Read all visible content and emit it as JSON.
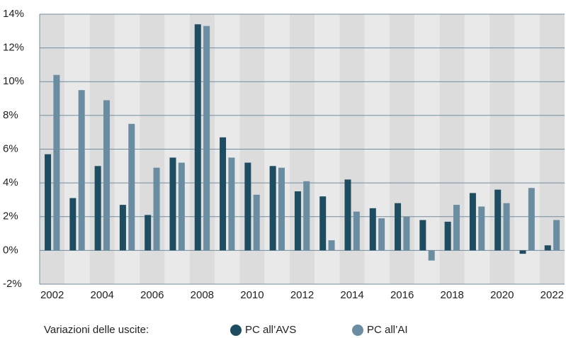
{
  "chart_data": {
    "type": "bar",
    "categories": [
      "2002",
      null,
      "2004",
      null,
      "2006",
      null,
      "2008",
      null,
      "2010",
      null,
      "2012",
      null,
      "2014",
      null,
      "2016",
      null,
      "2018",
      null,
      "2020",
      null,
      "2022"
    ],
    "series": [
      {
        "name": "PC all’AVS",
        "color": "#1e4d61",
        "values": [
          5.7,
          3.1,
          5.0,
          2.7,
          2.1,
          5.5,
          13.4,
          6.7,
          5.2,
          5.0,
          3.5,
          3.2,
          4.2,
          2.5,
          2.8,
          1.8,
          1.7,
          3.4,
          3.6,
          -0.2,
          0.3
        ]
      },
      {
        "name": "PC all’AI",
        "color": "#6a8da2",
        "values": [
          10.4,
          9.5,
          8.9,
          7.5,
          4.9,
          5.2,
          13.3,
          5.5,
          3.3,
          4.9,
          4.1,
          0.6,
          2.3,
          1.9,
          2.0,
          -0.6,
          2.7,
          2.6,
          2.8,
          3.7,
          1.8
        ]
      }
    ],
    "legend_title": "Variazioni delle uscite:",
    "ylim": [
      -2,
      14
    ],
    "yticks": [
      {
        "value": -2,
        "label": "-2%"
      },
      {
        "value": 0,
        "label": "0%"
      },
      {
        "value": 2,
        "label": "2%"
      },
      {
        "value": 4,
        "label": "4%"
      },
      {
        "value": 6,
        "label": "6%"
      },
      {
        "value": 8,
        "label": "8%"
      },
      {
        "value": 10,
        "label": "10%"
      },
      {
        "value": 12,
        "label": "12%"
      },
      {
        "value": 14,
        "label": "14%"
      }
    ],
    "grid": true
  }
}
